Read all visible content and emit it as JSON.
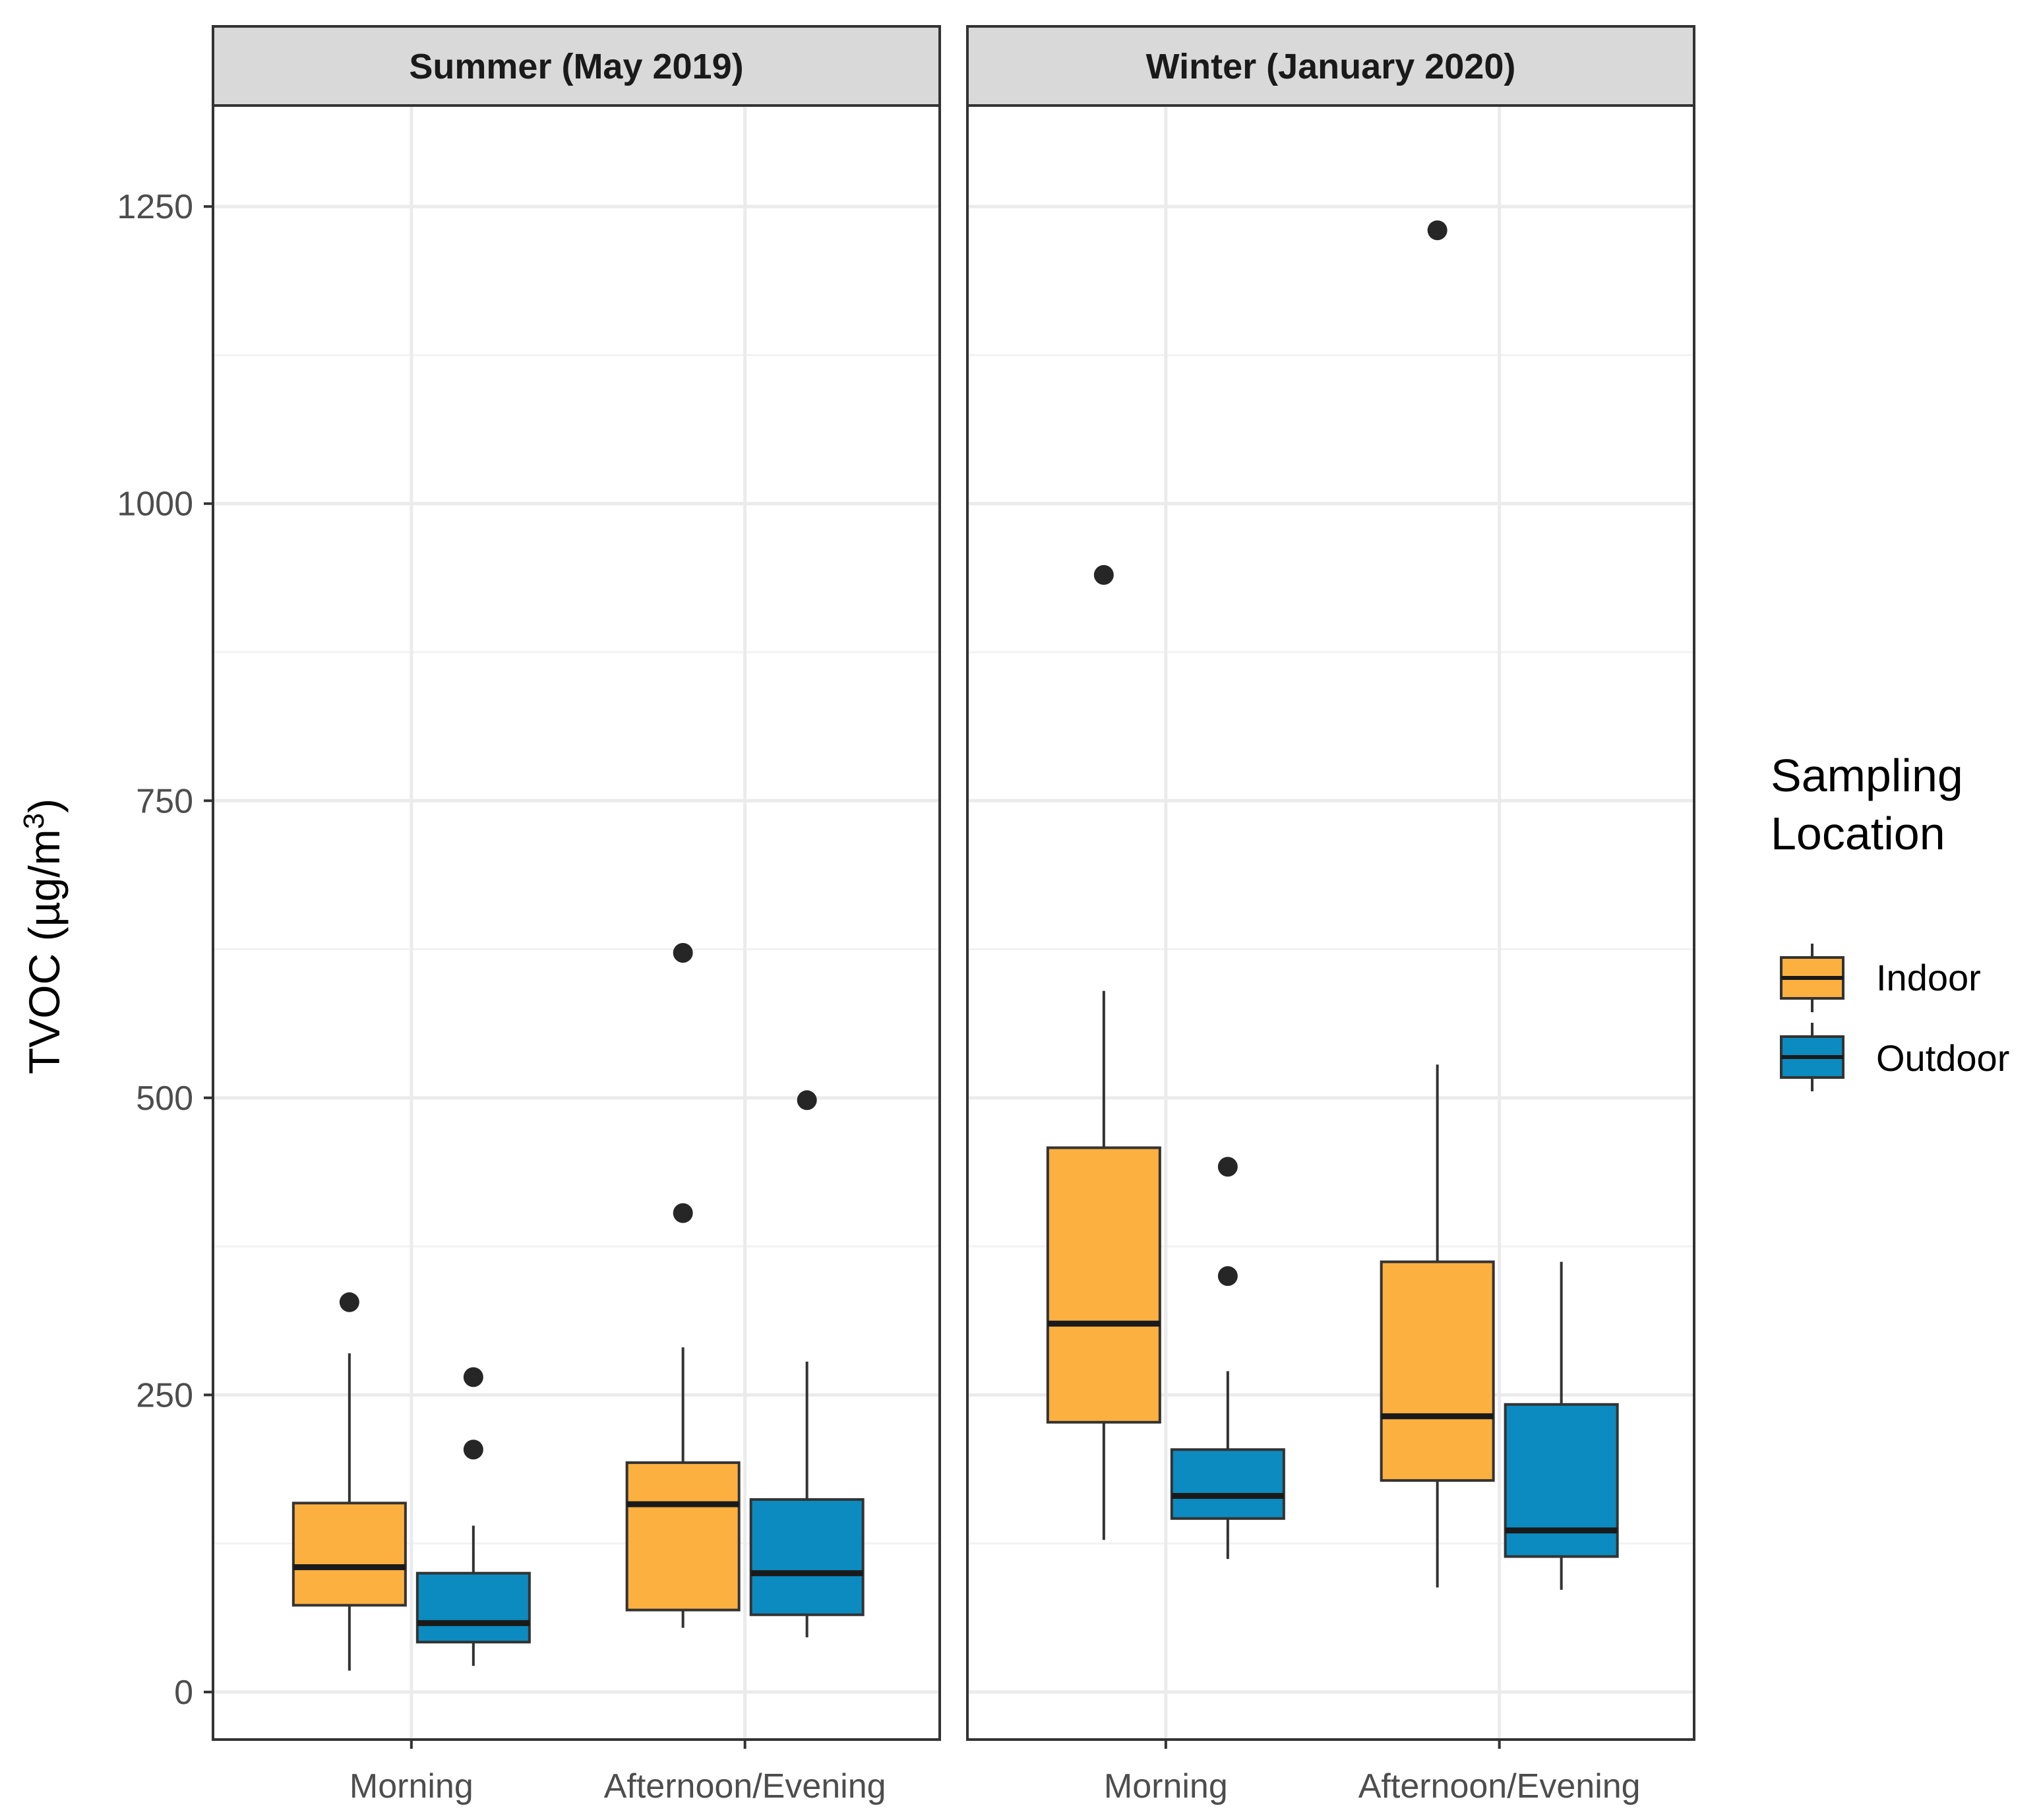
{
  "chart_data": {
    "type": "boxplot",
    "ylabel": "TVOC (µg/m",
    "ylabel_superscript": "3",
    "ylabel_close": ")",
    "ylim": [
      -40,
      1335
    ],
    "yticks": [
      0,
      250,
      500,
      750,
      1000,
      1250
    ],
    "ytick_labels": [
      "0",
      "250",
      "500",
      "750",
      "1000",
      "1250"
    ],
    "categories": [
      "Morning",
      "Afternoon/Evening"
    ],
    "legend": {
      "title_lines": [
        "Sampling",
        "Location"
      ],
      "entries": [
        {
          "name": "Indoor",
          "color": "#fbb040"
        },
        {
          "name": "Outdoor",
          "color": "#0b8bc0"
        }
      ]
    },
    "panels": [
      {
        "title": "Summer (May 2019)",
        "groups": [
          {
            "category": "Morning",
            "series": "Indoor",
            "whisker_low": 18,
            "q1": 73,
            "median": 105,
            "q3": 159,
            "whisker_high": 285,
            "outliers": [
              328
            ]
          },
          {
            "category": "Morning",
            "series": "Outdoor",
            "whisker_low": 22,
            "q1": 42,
            "median": 58,
            "q3": 100,
            "whisker_high": 140,
            "outliers": [
              204,
              265
            ]
          },
          {
            "category": "Afternoon/Evening",
            "series": "Indoor",
            "whisker_low": 54,
            "q1": 69,
            "median": 158,
            "q3": 193,
            "whisker_high": 290,
            "outliers": [
              403,
              622
            ]
          },
          {
            "category": "Afternoon/Evening",
            "series": "Outdoor",
            "whisker_low": 46,
            "q1": 65,
            "median": 100,
            "q3": 162,
            "whisker_high": 278,
            "outliers": [
              498
            ]
          }
        ]
      },
      {
        "title": "Winter (January 2020)",
        "groups": [
          {
            "category": "Morning",
            "series": "Indoor",
            "whisker_low": 128,
            "q1": 227,
            "median": 310,
            "q3": 458,
            "whisker_high": 590,
            "outliers": [
              940
            ]
          },
          {
            "category": "Morning",
            "series": "Outdoor",
            "whisker_low": 112,
            "q1": 146,
            "median": 165,
            "q3": 204,
            "whisker_high": 270,
            "outliers": [
              350,
              442
            ]
          },
          {
            "category": "Afternoon/Evening",
            "series": "Indoor",
            "whisker_low": 88,
            "q1": 178,
            "median": 232,
            "q3": 362,
            "whisker_high": 528,
            "outliers": [
              1230
            ]
          },
          {
            "category": "Afternoon/Evening",
            "series": "Outdoor",
            "whisker_low": 86,
            "q1": 114,
            "median": 136,
            "q3": 242,
            "whisker_high": 362,
            "outliers": []
          }
        ]
      }
    ]
  }
}
